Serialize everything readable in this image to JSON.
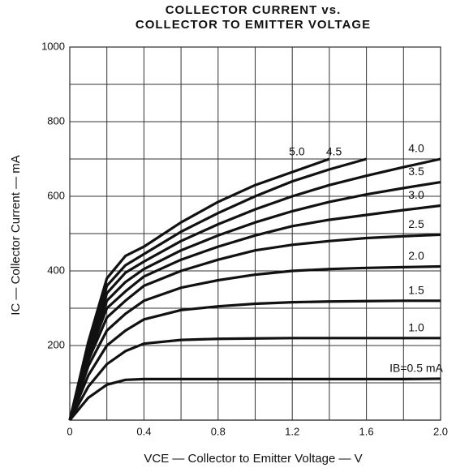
{
  "chart_data": {
    "type": "line",
    "title": [
      "COLLECTOR CURRENT vs.",
      "COLLECTOR TO EMITTER VOLTAGE"
    ],
    "x_label": "VCE — Collector to Emitter Voltage — V",
    "y_label": "IC — Collector Current — mA",
    "x": [
      0,
      0.1,
      0.2,
      0.3,
      0.4,
      0.6,
      0.8,
      1.0,
      1.2,
      1.4,
      1.6,
      1.8,
      2.0
    ],
    "series": [
      {
        "name": "5.0",
        "color": "#111111",
        "values": [
          0,
          210,
          380,
          440,
          465,
          530,
          585,
          630,
          665,
          700,
          null,
          null,
          null
        ]
      },
      {
        "name": "4.5",
        "color": "#111111",
        "values": [
          0,
          200,
          360,
          415,
          445,
          505,
          555,
          600,
          640,
          672,
          700,
          null,
          null
        ]
      },
      {
        "name": "4.0",
        "color": "#111111",
        "values": [
          0,
          190,
          340,
          395,
          425,
          480,
          525,
          565,
          600,
          630,
          655,
          678,
          700
        ]
      },
      {
        "name": "3.5",
        "color": "#111111",
        "values": [
          0,
          180,
          320,
          370,
          405,
          455,
          495,
          530,
          560,
          585,
          605,
          622,
          638
        ]
      },
      {
        "name": "3.0",
        "color": "#111111",
        "values": [
          0,
          170,
          300,
          345,
          385,
          430,
          465,
          495,
          520,
          537,
          550,
          563,
          575
        ]
      },
      {
        "name": "2.5",
        "color": "#111111",
        "values": [
          0,
          160,
          275,
          320,
          360,
          400,
          430,
          455,
          470,
          480,
          488,
          493,
          497
        ]
      },
      {
        "name": "2.0",
        "color": "#111111",
        "values": [
          0,
          145,
          240,
          285,
          320,
          355,
          375,
          390,
          400,
          405,
          408,
          410,
          412
        ]
      },
      {
        "name": "1.5",
        "color": "#111111",
        "values": [
          0,
          120,
          200,
          240,
          270,
          295,
          305,
          312,
          316,
          318,
          319,
          320,
          320
        ]
      },
      {
        "name": "1.0",
        "color": "#111111",
        "values": [
          0,
          90,
          150,
          185,
          205,
          215,
          218,
          219,
          220,
          220,
          220,
          220,
          220
        ]
      },
      {
        "name": "IB=0.5 mA",
        "color": "#111111",
        "values": [
          0,
          60,
          95,
          108,
          110,
          110,
          110,
          110,
          110,
          110,
          110,
          110,
          111
        ]
      }
    ],
    "xlim": [
      0,
      2
    ],
    "ylim": [
      0,
      1000
    ],
    "xticks": [
      0,
      0.4,
      0.8,
      1.2,
      1.6,
      {
        "value": 2,
        "label": "2.0"
      }
    ],
    "minor_xticks": [
      0.2,
      0.6,
      1.0,
      1.4,
      1.8
    ],
    "yticks": [
      200,
      400,
      600,
      800,
      1000
    ],
    "minor_yticks": [
      100,
      300,
      500,
      700,
      900
    ],
    "grid": true
  }
}
